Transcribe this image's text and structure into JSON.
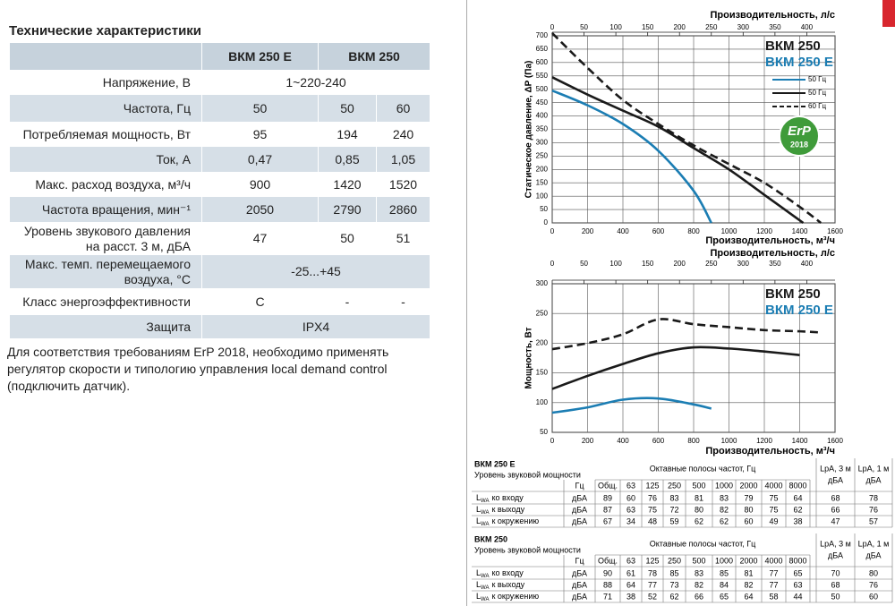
{
  "specs": {
    "title": "Технические характеристики",
    "columns": [
      "ВКМ 250 E",
      "ВКМ 250"
    ],
    "rows": [
      {
        "label": "Напряжение, В",
        "values": [
          "1~220-240"
        ]
      },
      {
        "label": "Частота, Гц",
        "values": [
          50,
          50,
          60
        ]
      },
      {
        "label": "Потребляемая мощность, Вт",
        "values": [
          95,
          194,
          240
        ]
      },
      {
        "label": "Ток, А",
        "values": [
          "0,47",
          "0,85",
          "1,05"
        ]
      },
      {
        "label": "Макс. расход воздуха, м³/ч",
        "values": [
          900,
          1420,
          1520
        ]
      },
      {
        "label": "Частота вращения, мин⁻¹",
        "values": [
          2050,
          2790,
          2860
        ]
      },
      {
        "label": "Уровень звукового давления на расст. 3 м, дБА",
        "values": [
          47,
          50,
          51
        ]
      },
      {
        "label": "Макс. темп. перемещаемого воздуха, °С",
        "values": [
          "-25...+45"
        ]
      },
      {
        "label": "Класс энергоэффективности",
        "values": [
          "C",
          "-",
          "-"
        ]
      },
      {
        "label": "Защита",
        "values": [
          "IPX4"
        ]
      }
    ]
  },
  "note": [
    "Для соответствия требованиям ErP 2018, необходимо применять",
    "регулятор скорости и типологию управления local demand control",
    "(подключить датчик)."
  ],
  "chart_data": [
    {
      "type": "line",
      "x_label": "Производительность, м³/ч",
      "x2_label": "Производительность, л/с",
      "y_label": "Статическое давление, ΔP (Па)",
      "xlim": [
        0,
        1600
      ],
      "xticks": [
        0,
        200,
        400,
        600,
        800,
        1000,
        1200,
        1400,
        1600
      ],
      "x2lim": [
        0,
        444.4
      ],
      "x2ticks": [
        0,
        50,
        100,
        150,
        200,
        250,
        300,
        350,
        400
      ],
      "ylim": [
        0,
        700
      ],
      "yticks": [
        0,
        50,
        100,
        150,
        200,
        250,
        300,
        350,
        400,
        450,
        500,
        550,
        600,
        650,
        700
      ],
      "grid": true,
      "legend": "upper right",
      "model_labels": [
        {
          "text": "ВКМ 250",
          "color": "#1a1a1a"
        },
        {
          "text": "ВКМ 250 E",
          "color": "#1b7db3"
        }
      ],
      "badge": {
        "text": "ErP",
        "year": 2018
      },
      "series": [
        {
          "name": "50 Гц",
          "color": "#1b7db3",
          "dash": false,
          "x": [
            0,
            200,
            400,
            600,
            800,
            900
          ],
          "values": [
            495,
            440,
            370,
            270,
            120,
            0
          ]
        },
        {
          "name": "50 Гц",
          "color": "#1a1a1a",
          "dash": false,
          "x": [
            0,
            200,
            400,
            600,
            800,
            1000,
            1200,
            1420
          ],
          "values": [
            545,
            480,
            420,
            360,
            280,
            200,
            105,
            0
          ]
        },
        {
          "name": "60 Гц",
          "color": "#1a1a1a",
          "dash": true,
          "x": [
            0,
            200,
            400,
            600,
            800,
            1000,
            1200,
            1400,
            1520
          ],
          "values": [
            710,
            580,
            460,
            370,
            290,
            220,
            150,
            60,
            0
          ]
        }
      ]
    },
    {
      "type": "line",
      "x_label": "Производительность, м³/ч",
      "x2_label": "Производительность, л/с",
      "y_label": "Мощность, Вт",
      "xlim": [
        0,
        1600
      ],
      "xticks": [
        0,
        200,
        400,
        600,
        800,
        1000,
        1200,
        1400,
        1600
      ],
      "x2lim": [
        0,
        444.4
      ],
      "x2ticks": [
        0,
        50,
        100,
        150,
        200,
        250,
        300,
        350,
        400
      ],
      "ylim": [
        50,
        300
      ],
      "yticks": [
        50,
        100,
        150,
        200,
        250,
        300
      ],
      "grid": true,
      "model_labels": [
        {
          "text": "ВКМ 250",
          "color": "#1a1a1a"
        },
        {
          "text": "ВКМ 250 E",
          "color": "#1b7db3"
        }
      ],
      "series": [
        {
          "color": "#1b7db3",
          "dash": false,
          "x": [
            0,
            200,
            400,
            600,
            800,
            900
          ],
          "values": [
            83,
            92,
            105,
            107,
            97,
            90
          ]
        },
        {
          "color": "#1a1a1a",
          "dash": false,
          "x": [
            0,
            200,
            400,
            600,
            800,
            1000,
            1200,
            1400
          ],
          "values": [
            123,
            145,
            165,
            183,
            193,
            191,
            186,
            180
          ]
        },
        {
          "color": "#1a1a1a",
          "dash": true,
          "x": [
            0,
            200,
            400,
            600,
            800,
            1000,
            1200,
            1400,
            1520
          ],
          "values": [
            190,
            200,
            215,
            240,
            232,
            227,
            222,
            220,
            218
          ]
        }
      ]
    }
  ],
  "sound_power": [
    {
      "model": "ВКМ 250 E",
      "subtitle": "Уровень звуковой мощности",
      "header": "Октавные полосы частот, Гц",
      "unit_header": "Гц",
      "columns": [
        "Общ.",
        63,
        125,
        250,
        500,
        1000,
        2000,
        4000,
        8000
      ],
      "lpa_headers": [
        {
          "line1": "LpA, 3 м",
          "line2": "дБА"
        },
        {
          "line1": "LpA, 1 м",
          "line2": "дБА"
        }
      ],
      "rows": [
        {
          "symbol": "L",
          "sub": "WA",
          "label": "ко входу",
          "unit": "дБА",
          "values": [
            89,
            60,
            76,
            83,
            81,
            83,
            79,
            75,
            64
          ],
          "lpa": [
            68,
            78
          ]
        },
        {
          "symbol": "L",
          "sub": "WA",
          "label": "к выходу",
          "unit": "дБА",
          "values": [
            87,
            63,
            75,
            72,
            80,
            82,
            80,
            75,
            62
          ],
          "lpa": [
            66,
            76
          ]
        },
        {
          "symbol": "L",
          "sub": "WA",
          "label": "к окружению",
          "unit": "дБА",
          "values": [
            67,
            34,
            48,
            59,
            62,
            62,
            60,
            49,
            38
          ],
          "lpa": [
            47,
            57
          ]
        }
      ]
    },
    {
      "model": "ВКМ 250",
      "subtitle": "Уровень звуковой мощности",
      "header": "Октавные полосы частот, Гц",
      "unit_header": "Гц",
      "columns": [
        "Общ.",
        63,
        125,
        250,
        500,
        1000,
        2000,
        4000,
        8000
      ],
      "lpa_headers": [
        {
          "line1": "LpA, 3 м",
          "line2": "дБА"
        },
        {
          "line1": "LpA, 1 м",
          "line2": "дБА"
        }
      ],
      "rows": [
        {
          "symbol": "L",
          "sub": "WA",
          "label": "ко входу",
          "unit": "дБА",
          "values": [
            90,
            61,
            78,
            85,
            83,
            85,
            81,
            77,
            65
          ],
          "lpa": [
            70,
            80
          ]
        },
        {
          "symbol": "L",
          "sub": "WA",
          "label": "к выходу",
          "unit": "дБА",
          "values": [
            88,
            64,
            77,
            73,
            82,
            84,
            82,
            77,
            63
          ],
          "lpa": [
            68,
            76
          ]
        },
        {
          "symbol": "L",
          "sub": "WA",
          "label": "к окружению",
          "unit": "дБА",
          "values": [
            71,
            38,
            52,
            62,
            66,
            65,
            64,
            58,
            44
          ],
          "lpa": [
            50,
            60
          ]
        }
      ]
    }
  ]
}
